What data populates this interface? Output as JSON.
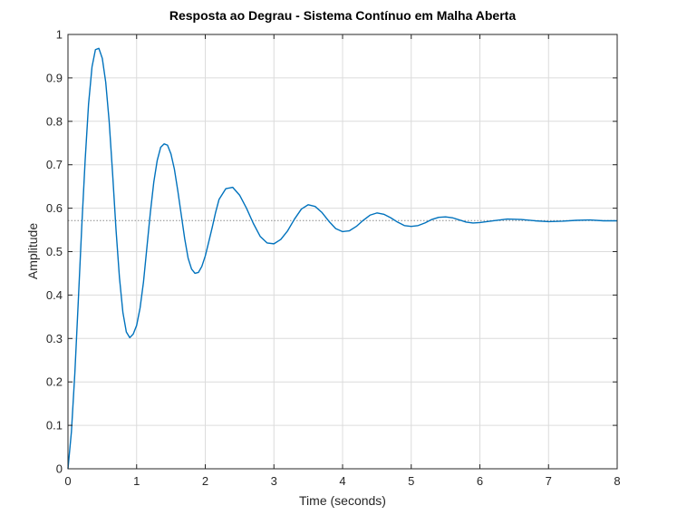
{
  "chart_data": {
    "type": "line",
    "title": "Resposta ao Degrau - Sistema Contínuo em Malha Aberta",
    "xlabel": "Time (seconds)",
    "ylabel": "Amplitude",
    "xlim": [
      0,
      8
    ],
    "ylim": [
      0,
      1
    ],
    "xticks": [
      "0",
      "1",
      "2",
      "3",
      "4",
      "5",
      "6",
      "7",
      "8"
    ],
    "yticks": [
      "0",
      "0.1",
      "0.2",
      "0.3",
      "0.4",
      "0.5",
      "0.6",
      "0.7",
      "0.8",
      "0.9",
      "1"
    ],
    "grid": true,
    "legend": "none",
    "steady_state": 0.5714,
    "series": [
      {
        "color": "#0072BD",
        "x": [
          0,
          0.05,
          0.1,
          0.15,
          0.2,
          0.25,
          0.3,
          0.35,
          0.4,
          0.45,
          0.5,
          0.55,
          0.6,
          0.65,
          0.7,
          0.75,
          0.8,
          0.85,
          0.9,
          0.95,
          1.0,
          1.05,
          1.1,
          1.15,
          1.2,
          1.25,
          1.3,
          1.35,
          1.4,
          1.45,
          1.5,
          1.55,
          1.6,
          1.65,
          1.7,
          1.75,
          1.8,
          1.85,
          1.9,
          1.95,
          2.0,
          2.05,
          2.1,
          2.15,
          2.2,
          2.3,
          2.4,
          2.5,
          2.6,
          2.7,
          2.8,
          2.9,
          3.0,
          3.1,
          3.2,
          3.3,
          3.4,
          3.5,
          3.6,
          3.7,
          3.8,
          3.9,
          4.0,
          4.1,
          4.2,
          4.3,
          4.4,
          4.5,
          4.6,
          4.7,
          4.8,
          4.9,
          5.0,
          5.1,
          5.2,
          5.3,
          5.4,
          5.5,
          5.6,
          5.7,
          5.8,
          5.9,
          6.0,
          6.2,
          6.4,
          6.6,
          6.8,
          7.0,
          7.2,
          7.4,
          7.6,
          7.8,
          8.0
        ],
        "y": [
          0,
          0.085,
          0.22,
          0.385,
          0.555,
          0.71,
          0.84,
          0.925,
          0.965,
          0.968,
          0.945,
          0.89,
          0.8,
          0.68,
          0.55,
          0.44,
          0.36,
          0.315,
          0.302,
          0.31,
          0.33,
          0.37,
          0.43,
          0.51,
          0.59,
          0.66,
          0.71,
          0.74,
          0.748,
          0.745,
          0.725,
          0.69,
          0.64,
          0.585,
          0.53,
          0.485,
          0.46,
          0.45,
          0.452,
          0.466,
          0.49,
          0.522,
          0.555,
          0.59,
          0.62,
          0.645,
          0.648,
          0.63,
          0.6,
          0.565,
          0.535,
          0.52,
          0.518,
          0.528,
          0.548,
          0.575,
          0.598,
          0.608,
          0.604,
          0.59,
          0.57,
          0.553,
          0.546,
          0.548,
          0.558,
          0.572,
          0.584,
          0.589,
          0.586,
          0.578,
          0.568,
          0.56,
          0.558,
          0.56,
          0.566,
          0.574,
          0.579,
          0.58,
          0.578,
          0.573,
          0.568,
          0.566,
          0.567,
          0.571,
          0.575,
          0.574,
          0.571,
          0.569,
          0.57,
          0.572,
          0.573,
          0.571,
          0.571
        ]
      }
    ]
  }
}
